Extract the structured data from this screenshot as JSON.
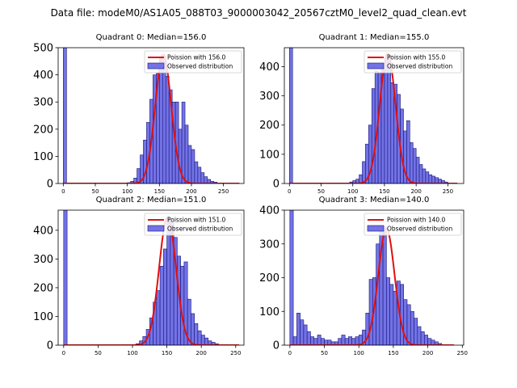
{
  "suptitle": "Data file: modeM0/AS1A05_088T03_9000003042_20567cztM0_level2_quad_clean.evt",
  "colors": {
    "bar_fill": "#7373e6",
    "bar_edge": "#15157a",
    "fit_line": "#e01010"
  },
  "chart_data": [
    {
      "type": "bar",
      "title": "Quadrant 0: Median=156.0",
      "xlim": [
        -8,
        282
      ],
      "ylim": [
        0,
        500
      ],
      "xticks": [
        0,
        50,
        100,
        150,
        200,
        250
      ],
      "yticks": [
        0,
        100,
        200,
        300,
        400,
        500
      ],
      "bin_width": 5,
      "legend": [
        "Poission with 156.0",
        "Observed distribution"
      ],
      "fit_mean": 156,
      "fit_peak": 475,
      "fit_sigma": 12.5,
      "fit_x_range": [
        0,
        275
      ],
      "bins": [
        [
          0,
          500
        ],
        [
          100,
          3
        ],
        [
          105,
          8
        ],
        [
          110,
          20
        ],
        [
          115,
          55
        ],
        [
          120,
          105
        ],
        [
          125,
          160
        ],
        [
          130,
          225
        ],
        [
          135,
          310
        ],
        [
          140,
          400
        ],
        [
          145,
          405
        ],
        [
          150,
          465
        ],
        [
          155,
          470
        ],
        [
          160,
          395
        ],
        [
          165,
          345
        ],
        [
          170,
          300
        ],
        [
          175,
          300
        ],
        [
          180,
          200
        ],
        [
          185,
          300
        ],
        [
          190,
          215
        ],
        [
          195,
          140
        ],
        [
          200,
          125
        ],
        [
          205,
          80
        ],
        [
          210,
          60
        ],
        [
          215,
          40
        ],
        [
          220,
          25
        ],
        [
          225,
          15
        ],
        [
          230,
          8
        ],
        [
          235,
          5
        ],
        [
          240,
          2
        ]
      ]
    },
    {
      "type": "bar",
      "title": "Quadrant 1: Median=155.0",
      "xlim": [
        -8,
        275
      ],
      "ylim": [
        0,
        465
      ],
      "xticks": [
        0,
        50,
        100,
        150,
        200,
        250
      ],
      "yticks": [
        0,
        100,
        200,
        300,
        400
      ],
      "bin_width": 5,
      "legend": [
        "Poission with 155.0",
        "Observed distribution"
      ],
      "fit_mean": 155,
      "fit_peak": 445,
      "fit_sigma": 12.5,
      "fit_x_range": [
        0,
        265
      ],
      "bins": [
        [
          0,
          465
        ],
        [
          95,
          5
        ],
        [
          100,
          10
        ],
        [
          105,
          15
        ],
        [
          110,
          30
        ],
        [
          115,
          75
        ],
        [
          120,
          135
        ],
        [
          125,
          200
        ],
        [
          130,
          325
        ],
        [
          135,
          385
        ],
        [
          140,
          380
        ],
        [
          145,
          400
        ],
        [
          150,
          430
        ],
        [
          155,
          440
        ],
        [
          160,
          345
        ],
        [
          165,
          340
        ],
        [
          170,
          305
        ],
        [
          175,
          255
        ],
        [
          180,
          180
        ],
        [
          185,
          215
        ],
        [
          190,
          140
        ],
        [
          195,
          120
        ],
        [
          200,
          90
        ],
        [
          205,
          65
        ],
        [
          210,
          50
        ],
        [
          215,
          40
        ],
        [
          220,
          30
        ],
        [
          225,
          25
        ],
        [
          230,
          20
        ],
        [
          235,
          15
        ],
        [
          240,
          10
        ],
        [
          245,
          5
        ]
      ]
    },
    {
      "type": "bar",
      "title": "Quadrant 2: Median=151.0",
      "xlim": [
        -8,
        262
      ],
      "ylim": [
        0,
        470
      ],
      "xticks": [
        0,
        50,
        100,
        150,
        200,
        250
      ],
      "yticks": [
        0,
        100,
        200,
        300,
        400
      ],
      "bin_width": 5,
      "legend": [
        "Poission with 151.0",
        "Observed distribution"
      ],
      "fit_mean": 151,
      "fit_peak": 445,
      "fit_sigma": 12.3,
      "fit_x_range": [
        0,
        255
      ],
      "bins": [
        [
          0,
          470
        ],
        [
          105,
          5
        ],
        [
          110,
          15
        ],
        [
          115,
          30
        ],
        [
          120,
          55
        ],
        [
          125,
          95
        ],
        [
          130,
          150
        ],
        [
          135,
          190
        ],
        [
          140,
          275
        ],
        [
          145,
          335
        ],
        [
          150,
          445
        ],
        [
          155,
          430
        ],
        [
          160,
          375
        ],
        [
          165,
          310
        ],
        [
          170,
          275
        ],
        [
          175,
          290
        ],
        [
          180,
          160
        ],
        [
          185,
          110
        ],
        [
          190,
          75
        ],
        [
          195,
          50
        ],
        [
          200,
          35
        ],
        [
          205,
          25
        ],
        [
          210,
          15
        ],
        [
          215,
          10
        ],
        [
          220,
          5
        ]
      ]
    },
    {
      "type": "bar",
      "title": "Quadrant 3: Median=140.0",
      "xlim": [
        -8,
        252
      ],
      "ylim": [
        0,
        400
      ],
      "xticks": [
        0,
        50,
        100,
        150,
        200,
        250
      ],
      "yticks": [
        0,
        100,
        200,
        300,
        400
      ],
      "bin_width": 5,
      "legend": [
        "Poission with 140.0",
        "Observed distribution"
      ],
      "fit_mean": 140,
      "fit_peak": 345,
      "fit_sigma": 11.8,
      "fit_x_range": [
        0,
        238
      ],
      "bins": [
        [
          0,
          400
        ],
        [
          5,
          25
        ],
        [
          10,
          95
        ],
        [
          15,
          75
        ],
        [
          20,
          60
        ],
        [
          25,
          40
        ],
        [
          30,
          25
        ],
        [
          35,
          20
        ],
        [
          40,
          30
        ],
        [
          45,
          20
        ],
        [
          50,
          15
        ],
        [
          55,
          15
        ],
        [
          60,
          10
        ],
        [
          65,
          10
        ],
        [
          70,
          20
        ],
        [
          75,
          30
        ],
        [
          80,
          20
        ],
        [
          85,
          25
        ],
        [
          90,
          20
        ],
        [
          95,
          25
        ],
        [
          100,
          30
        ],
        [
          105,
          45
        ],
        [
          110,
          95
        ],
        [
          115,
          195
        ],
        [
          120,
          200
        ],
        [
          125,
          300
        ],
        [
          130,
          350
        ],
        [
          135,
          350
        ],
        [
          140,
          200
        ],
        [
          145,
          180
        ],
        [
          150,
          160
        ],
        [
          155,
          190
        ],
        [
          160,
          180
        ],
        [
          165,
          135
        ],
        [
          170,
          120
        ],
        [
          175,
          100
        ],
        [
          180,
          80
        ],
        [
          185,
          55
        ],
        [
          190,
          40
        ],
        [
          195,
          30
        ],
        [
          200,
          20
        ],
        [
          205,
          15
        ],
        [
          210,
          10
        ],
        [
          215,
          5
        ]
      ]
    }
  ]
}
